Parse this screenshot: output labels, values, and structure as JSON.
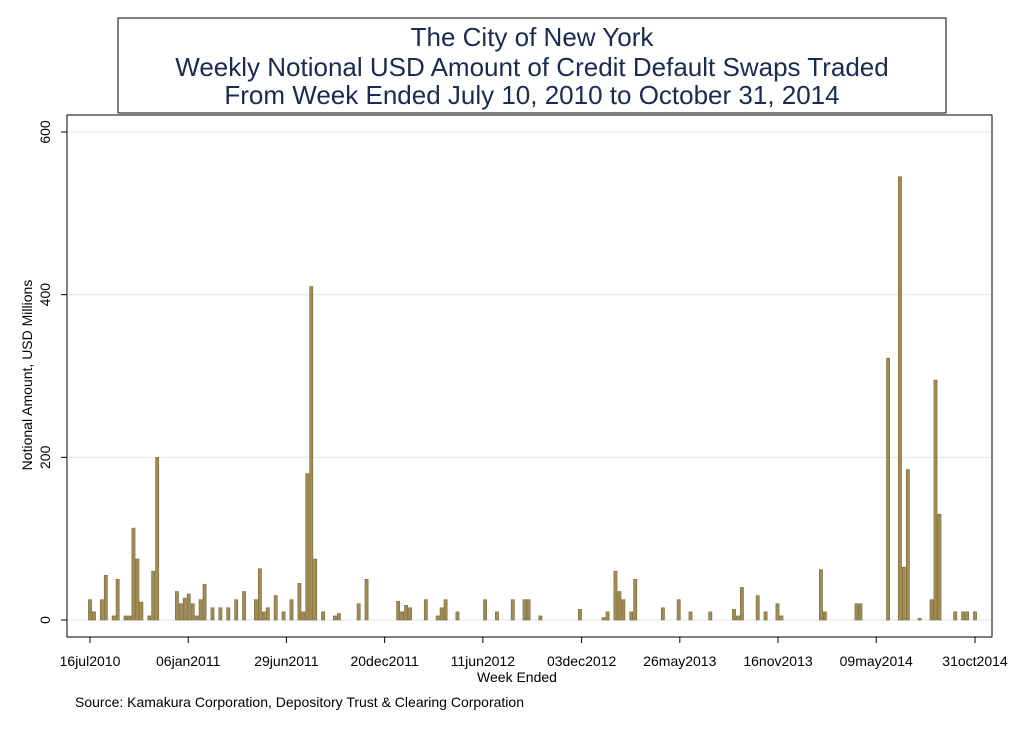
{
  "chart_data": {
    "type": "bar",
    "title": [
      "The City of New York",
      "Weekly Notional USD Amount of Credit Default Swaps Traded",
      "From Week Ended July 10, 2010 to October 31, 2014"
    ],
    "xlabel": "Week Ended",
    "ylabel": "Notional Amount, USD Millions",
    "source": "Source: Kamakura Corporation, Depository Trust & Clearing Corporation",
    "color": "#a08c54",
    "grid": true,
    "xlim": [
      "2010-07-16",
      "2014-10-31"
    ],
    "ylim": [
      0,
      600
    ],
    "yticks": [
      0,
      200,
      400,
      600
    ],
    "xticks": [
      {
        "value": "2010-07-16",
        "label": "16jul2010"
      },
      {
        "value": "2011-01-06",
        "label": "06jan2011"
      },
      {
        "value": "2011-06-29",
        "label": "29jun2011"
      },
      {
        "value": "2011-12-20",
        "label": "20dec2011"
      },
      {
        "value": "2012-06-11",
        "label": "11jun2012"
      },
      {
        "value": "2012-12-03",
        "label": "03dec2012"
      },
      {
        "value": "2013-05-26",
        "label": "26may2013"
      },
      {
        "value": "2013-11-16",
        "label": "16nov2013"
      },
      {
        "value": "2014-05-09",
        "label": "09may2014"
      },
      {
        "value": "2014-10-31",
        "label": "31oct2014"
      }
    ],
    "x": [
      "2010-07-16",
      "2010-07-23",
      "2010-08-06",
      "2010-08-13",
      "2010-08-27",
      "2010-09-03",
      "2010-09-17",
      "2010-09-24",
      "2010-10-01",
      "2010-10-08",
      "2010-10-15",
      "2010-10-29",
      "2010-11-05",
      "2010-11-12",
      "2010-12-17",
      "2010-12-24",
      "2010-12-31",
      "2011-01-07",
      "2011-01-14",
      "2011-01-21",
      "2011-01-28",
      "2011-02-04",
      "2011-02-18",
      "2011-03-04",
      "2011-03-18",
      "2011-04-01",
      "2011-04-15",
      "2011-05-06",
      "2011-05-13",
      "2011-05-20",
      "2011-05-27",
      "2011-06-10",
      "2011-06-24",
      "2011-07-08",
      "2011-07-22",
      "2011-07-29",
      "2011-08-05",
      "2011-08-12",
      "2011-08-19",
      "2011-09-02",
      "2011-09-23",
      "2011-09-30",
      "2011-11-04",
      "2011-11-18",
      "2012-01-13",
      "2012-01-20",
      "2012-01-27",
      "2012-02-03",
      "2012-03-02",
      "2012-03-23",
      "2012-03-30",
      "2012-04-06",
      "2012-04-27",
      "2012-06-15",
      "2012-07-06",
      "2012-08-03",
      "2012-08-24",
      "2012-08-31",
      "2012-09-21",
      "2012-11-30",
      "2013-01-11",
      "2013-01-18",
      "2013-02-01",
      "2013-02-08",
      "2013-02-15",
      "2013-03-01",
      "2013-03-08",
      "2013-04-26",
      "2013-05-24",
      "2013-06-14",
      "2013-07-19",
      "2013-08-30",
      "2013-09-06",
      "2013-09-13",
      "2013-10-11",
      "2013-10-25",
      "2013-11-15",
      "2013-11-22",
      "2014-01-31",
      "2014-02-07",
      "2014-04-04",
      "2014-04-11",
      "2014-05-30",
      "2014-06-20",
      "2014-06-27",
      "2014-07-04",
      "2014-07-25",
      "2014-08-15",
      "2014-08-22",
      "2014-08-29",
      "2014-09-26",
      "2014-10-10",
      "2014-10-17",
      "2014-10-31"
    ],
    "values": [
      25,
      10,
      25,
      55,
      5,
      50,
      5,
      5,
      113,
      75,
      22,
      5,
      60,
      200,
      35,
      20,
      27,
      32,
      20,
      5,
      25,
      44,
      15,
      15,
      15,
      25,
      35,
      25,
      63,
      10,
      15,
      30,
      10,
      25,
      45,
      10,
      180,
      410,
      75,
      10,
      5,
      8,
      20,
      50,
      23,
      10,
      18,
      15,
      25,
      5,
      15,
      25,
      10,
      25,
      10,
      25,
      25,
      25,
      5,
      13,
      3,
      10,
      60,
      35,
      25,
      10,
      50,
      15,
      25,
      10,
      10,
      13,
      5,
      40,
      30,
      10,
      20,
      5,
      62,
      10,
      20,
      20,
      322,
      545,
      65,
      185,
      2,
      25,
      295,
      130,
      10,
      10,
      10,
      10
    ]
  }
}
